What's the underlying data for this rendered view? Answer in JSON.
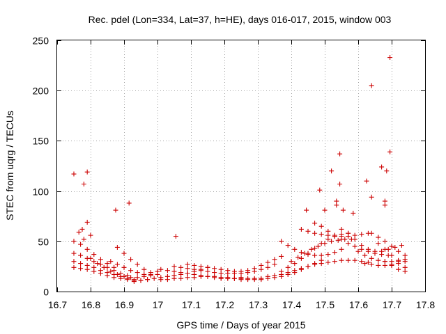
{
  "chart_data": {
    "type": "scatter",
    "title": "Rec. pdel (Lon=334, Lat=37, h=HE), days 016-017, 2015, window 003",
    "xlabel": "GPS time / Days of year 2015",
    "ylabel": "STEC from uqrg / TECUs",
    "xlim": [
      16.7,
      17.8
    ],
    "ylim": [
      0,
      250
    ],
    "xticks": [
      "16.7",
      "16.8",
      "16.9",
      "17",
      "17.1",
      "17.2",
      "17.3",
      "17.4",
      "17.5",
      "17.6",
      "17.7",
      "17.8"
    ],
    "yticks": [
      "0",
      "50",
      "100",
      "150",
      "200",
      "250"
    ],
    "grid": true,
    "marker": "plus",
    "color": "#cc0000",
    "outliers": [
      [
        16.75,
        117
      ],
      [
        16.78,
        107
      ],
      [
        16.79,
        119
      ],
      [
        16.875,
        81
      ],
      [
        16.915,
        88
      ],
      [
        17.055,
        55
      ],
      [
        17.52,
        120
      ],
      [
        17.545,
        137
      ],
      [
        17.545,
        107
      ],
      [
        17.625,
        110
      ],
      [
        17.64,
        205
      ],
      [
        17.67,
        124
      ],
      [
        17.685,
        120
      ],
      [
        17.695,
        233
      ],
      [
        17.695,
        139
      ],
      [
        17.64,
        94
      ],
      [
        17.68,
        90
      ],
      [
        17.68,
        86
      ],
      [
        17.485,
        101
      ],
      [
        17.5,
        81
      ],
      [
        17.445,
        81
      ],
      [
        17.535,
        90
      ],
      [
        17.535,
        86
      ],
      [
        17.555,
        81
      ],
      [
        17.585,
        78
      ],
      [
        16.765,
        59
      ],
      [
        16.775,
        62
      ],
      [
        16.79,
        69
      ],
      [
        16.8,
        56
      ],
      [
        16.78,
        52
      ]
    ],
    "tracks": [
      {
        "x": [
          16.75,
          16.77,
          16.79,
          16.81,
          16.83,
          16.85,
          16.87
        ],
        "y": [
          50,
          47,
          42,
          37,
          32,
          28,
          24
        ]
      },
      {
        "x": [
          16.75,
          16.77,
          16.79,
          16.81,
          16.83,
          16.85,
          16.87,
          16.89,
          16.91
        ],
        "y": [
          38,
          36,
          33,
          30,
          27,
          24,
          21,
          18,
          16
        ]
      },
      {
        "x": [
          16.75,
          16.77,
          16.79,
          16.81,
          16.83,
          16.85,
          16.87,
          16.89,
          16.91,
          16.93
        ],
        "y": [
          30,
          28,
          26,
          24,
          21,
          19,
          17,
          15,
          13,
          12
        ]
      },
      {
        "x": [
          16.75,
          16.77,
          16.79,
          16.81,
          16.83,
          16.85,
          16.87,
          16.89,
          16.91,
          16.93,
          16.95,
          16.97
        ],
        "y": [
          24,
          23,
          22,
          20,
          18,
          16,
          14,
          13,
          12,
          11,
          11,
          12
        ]
      },
      {
        "x": [
          16.8,
          16.82,
          16.84,
          16.86,
          16.88,
          16.9,
          16.92,
          16.94,
          16.96,
          16.98,
          17.0
        ],
        "y": [
          33,
          28,
          24,
          20,
          17,
          15,
          14,
          14,
          15,
          17,
          20
        ]
      },
      {
        "x": [
          16.88,
          16.9,
          16.92,
          16.94,
          16.96,
          16.98,
          17.0
        ],
        "y": [
          44,
          38,
          32,
          27,
          22,
          19,
          17
        ]
      },
      {
        "x": [
          16.86,
          16.88,
          16.9,
          16.92,
          16.94,
          16.96,
          16.98
        ],
        "y": [
          30,
          27,
          24,
          21,
          19,
          17,
          16
        ]
      },
      {
        "x": [
          16.93,
          16.95,
          16.97,
          16.99,
          17.01,
          17.03,
          17.05,
          17.07,
          17.09,
          17.11,
          17.13,
          17.15
        ],
        "y": [
          10,
          11,
          12,
          13,
          14,
          15,
          16,
          17,
          18,
          20,
          22,
          24
        ]
      },
      {
        "x": [
          17.01,
          17.03,
          17.05,
          17.07,
          17.09,
          17.11,
          17.13,
          17.15,
          17.17,
          17.19,
          17.21,
          17.23,
          17.25
        ],
        "y": [
          22,
          21,
          20,
          19,
          18,
          17,
          16,
          15,
          14,
          13,
          13,
          13,
          14
        ]
      },
      {
        "x": [
          17.01,
          17.03,
          17.05,
          17.07,
          17.09,
          17.11,
          17.13,
          17.15,
          17.17,
          17.19,
          17.21,
          17.23,
          17.25,
          17.27,
          17.29,
          17.31
        ],
        "y": [
          12,
          12,
          13,
          13,
          14,
          14,
          15,
          15,
          15,
          14,
          14,
          13,
          13,
          13,
          13,
          13
        ]
      },
      {
        "x": [
          17.05,
          17.07,
          17.09,
          17.11,
          17.13,
          17.15,
          17.17,
          17.19,
          17.21,
          17.23,
          17.25,
          17.27,
          17.29,
          17.31,
          17.33,
          17.35
        ],
        "y": [
          25,
          24,
          23,
          22,
          21,
          20,
          19,
          18,
          18,
          18,
          18,
          19,
          20,
          22,
          24,
          27
        ]
      },
      {
        "x": [
          17.09,
          17.11,
          17.13,
          17.15,
          17.17,
          17.19,
          17.21,
          17.23,
          17.25,
          17.27,
          17.29,
          17.31,
          17.33,
          17.35,
          17.37
        ],
        "y": [
          27,
          26,
          25,
          24,
          23,
          22,
          21,
          20,
          20,
          21,
          23,
          26,
          29,
          32,
          35
        ]
      },
      {
        "x": [
          17.25,
          17.27,
          17.29,
          17.31,
          17.33,
          17.35,
          17.37,
          17.39,
          17.41,
          17.43,
          17.45,
          17.47,
          17.49
        ],
        "y": [
          12,
          12,
          12,
          12,
          13,
          14,
          15,
          17,
          19,
          22,
          25,
          28,
          31
        ]
      },
      {
        "x": [
          17.33,
          17.35,
          17.37,
          17.39,
          17.41,
          17.43,
          17.45,
          17.47,
          17.49,
          17.51,
          17.53,
          17.55,
          17.57,
          17.59,
          17.61,
          17.63
        ],
        "y": [
          15,
          16,
          17,
          19,
          21,
          23,
          25,
          27,
          28,
          29,
          30,
          31,
          31,
          31,
          30,
          29
        ]
      },
      {
        "x": [
          17.37,
          17.39,
          17.41,
          17.43,
          17.45,
          17.47,
          17.49,
          17.51,
          17.53,
          17.55,
          17.57
        ],
        "y": [
          20,
          24,
          28,
          33,
          38,
          43,
          48,
          52,
          55,
          57,
          58
        ]
      },
      {
        "x": [
          17.37,
          17.39,
          17.41,
          17.43,
          17.45,
          17.47,
          17.49,
          17.51,
          17.53,
          17.55
        ],
        "y": [
          50,
          46,
          42,
          39,
          37,
          36,
          36,
          37,
          39,
          42
        ]
      },
      {
        "x": [
          17.4,
          17.42,
          17.44,
          17.46,
          17.48,
          17.5,
          17.52,
          17.54,
          17.56,
          17.58
        ],
        "y": [
          30,
          34,
          38,
          42,
          45,
          48,
          50,
          51,
          52,
          52
        ]
      },
      {
        "x": [
          17.43,
          17.45,
          17.47,
          17.49,
          17.51,
          17.53,
          17.55,
          17.57,
          17.59,
          17.61,
          17.63
        ],
        "y": [
          62,
          60,
          58,
          57,
          56,
          55,
          55,
          55,
          56,
          57,
          58
        ]
      },
      {
        "x": [
          17.47,
          17.49,
          17.51,
          17.53,
          17.55,
          17.57,
          17.59,
          17.61,
          17.63,
          17.65,
          17.67,
          17.69
        ],
        "y": [
          68,
          65,
          60,
          56,
          52,
          48,
          45,
          42,
          40,
          38,
          37,
          36
        ]
      },
      {
        "x": [
          17.55,
          17.57,
          17.59,
          17.61,
          17.63,
          17.65,
          17.67,
          17.69,
          17.71,
          17.73
        ],
        "y": [
          62,
          58,
          52,
          46,
          42,
          40,
          40,
          42,
          44,
          46
        ]
      },
      {
        "x": [
          17.6,
          17.62,
          17.64,
          17.66,
          17.68,
          17.7,
          17.72,
          17.74
        ],
        "y": [
          40,
          36,
          33,
          31,
          30,
          30,
          31,
          32
        ]
      },
      {
        "x": [
          17.62,
          17.64,
          17.66,
          17.68,
          17.7,
          17.72,
          17.74
        ],
        "y": [
          28,
          27,
          26,
          26,
          27,
          28,
          30
        ]
      },
      {
        "x": [
          17.64,
          17.66,
          17.68,
          17.7,
          17.72,
          17.74
        ],
        "y": [
          58,
          54,
          50,
          45,
          40,
          36
        ]
      },
      {
        "x": [
          17.66,
          17.68,
          17.7,
          17.72,
          17.74
        ],
        "y": [
          48,
          42,
          36,
          30,
          24
        ]
      },
      {
        "x": [
          17.68,
          17.7,
          17.72,
          17.74
        ],
        "y": [
          30,
          26,
          22,
          20
        ]
      }
    ]
  }
}
